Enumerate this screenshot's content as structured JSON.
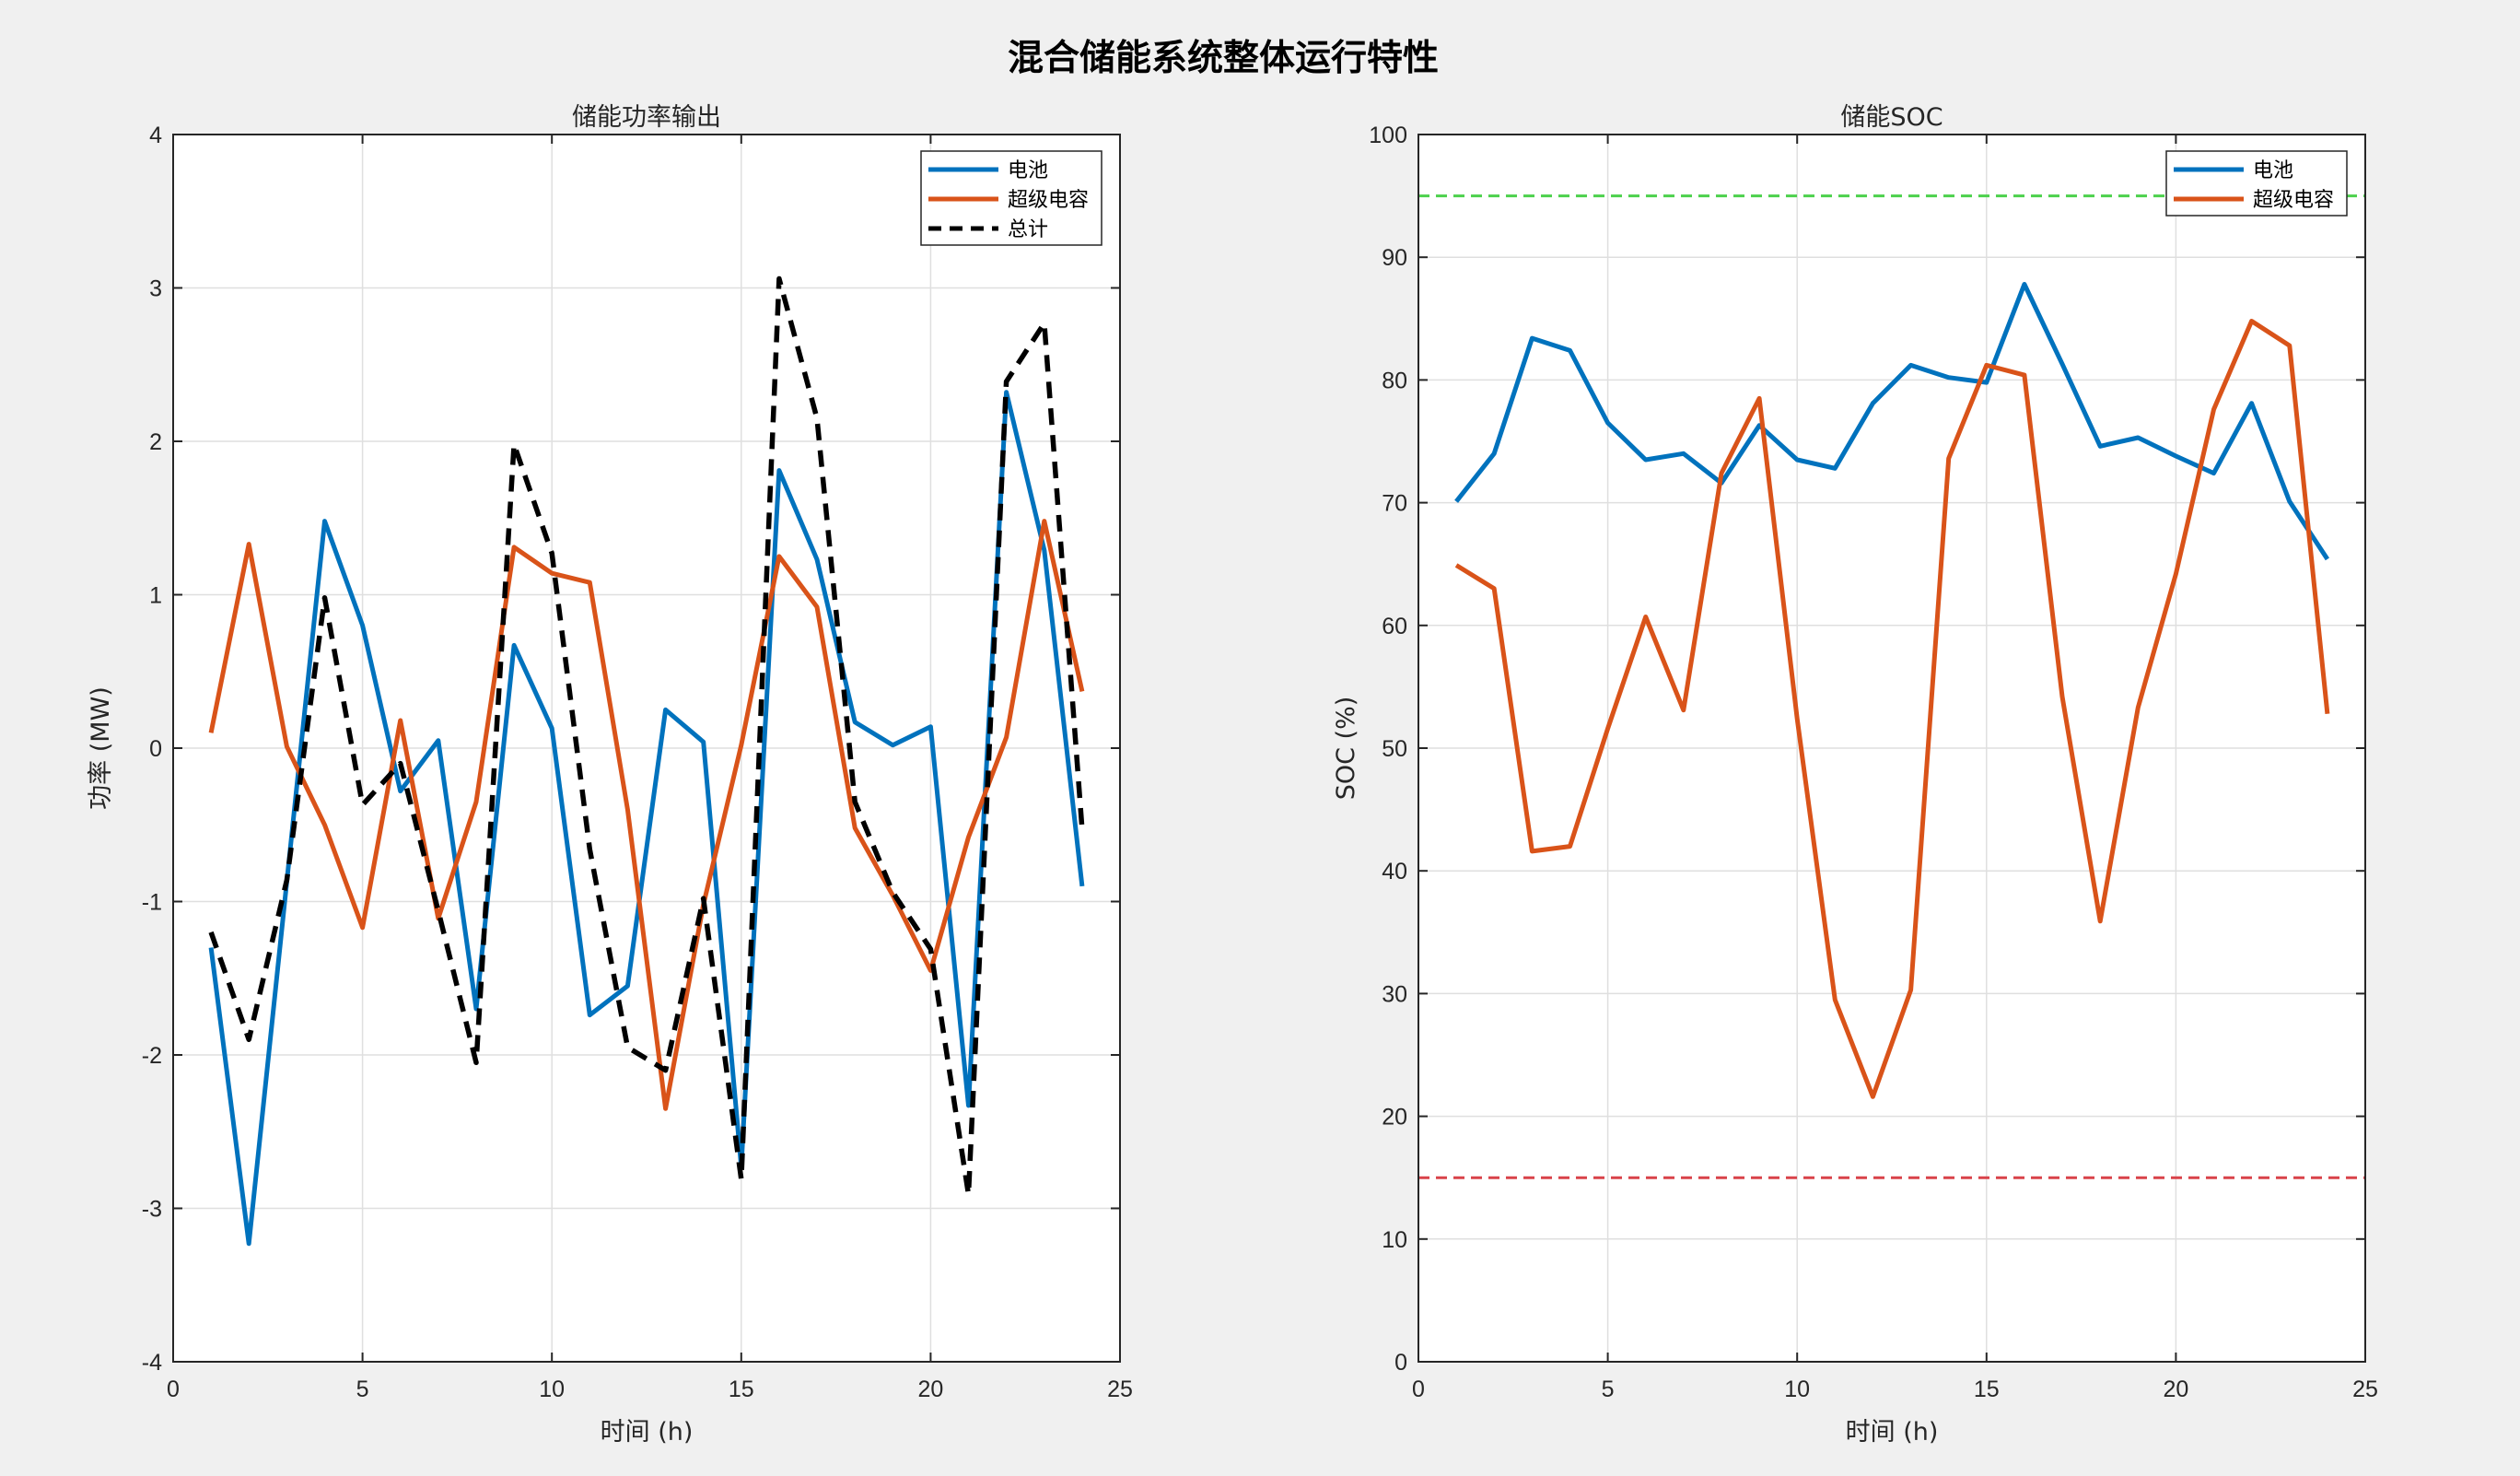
{
  "figure_title": "混合储能系统整体运行特性",
  "chart_data": [
    {
      "type": "line",
      "title": "储能功率输出",
      "xlabel": "时间 (h)",
      "ylabel": "功率 (MW)",
      "xlim": [
        0,
        25
      ],
      "ylim": [
        -4,
        4
      ],
      "xticks": [
        0,
        5,
        10,
        15,
        20,
        25
      ],
      "yticks": [
        -4,
        -3,
        -2,
        -1,
        0,
        1,
        2,
        3,
        4
      ],
      "grid": true,
      "legend_position": "top-right",
      "x": [
        1,
        2,
        3,
        4,
        5,
        6,
        7,
        8,
        9,
        10,
        11,
        12,
        13,
        14,
        15,
        16,
        17,
        18,
        19,
        20,
        21,
        22,
        23,
        24
      ],
      "series": [
        {
          "name": "电池",
          "color": "#0072bd",
          "style": "solid",
          "values": [
            -1.3,
            -3.23,
            -0.87,
            1.48,
            0.8,
            -0.28,
            0.05,
            -1.7,
            0.67,
            0.13,
            -1.74,
            -1.55,
            0.25,
            0.04,
            -2.73,
            1.81,
            1.23,
            0.17,
            0.02,
            0.14,
            -2.33,
            2.32,
            1.29,
            -0.9
          ]
        },
        {
          "name": "超级电容",
          "color": "#d95319",
          "style": "solid",
          "values": [
            0.1,
            1.33,
            0.01,
            -0.5,
            -1.17,
            0.18,
            -1.11,
            -0.35,
            1.31,
            1.14,
            1.08,
            -0.4,
            -2.35,
            -1.02,
            0.02,
            1.25,
            0.92,
            -0.52,
            -0.96,
            -1.45,
            -0.58,
            0.07,
            1.48,
            0.37
          ]
        },
        {
          "name": "总计",
          "color": "#000000",
          "style": "dashed",
          "values": [
            -1.2,
            -1.9,
            -0.86,
            0.98,
            -0.37,
            -0.1,
            -1.06,
            -2.05,
            1.98,
            1.27,
            -0.66,
            -1.95,
            -2.1,
            -0.98,
            -2.81,
            3.06,
            2.15,
            -0.35,
            -0.94,
            -1.31,
            -2.91,
            2.39,
            2.77,
            -0.53
          ]
        }
      ]
    },
    {
      "type": "line",
      "title": "储能SOC",
      "xlabel": "时间 (h)",
      "ylabel": "SOC (%)",
      "xlim": [
        0,
        25
      ],
      "ylim": [
        0,
        100
      ],
      "xticks": [
        0,
        5,
        10,
        15,
        20,
        25
      ],
      "yticks": [
        0,
        10,
        20,
        30,
        40,
        50,
        60,
        70,
        80,
        90,
        100
      ],
      "grid": true,
      "legend_position": "top-right",
      "x": [
        1,
        2,
        3,
        4,
        5,
        6,
        7,
        8,
        9,
        10,
        11,
        12,
        13,
        14,
        15,
        16,
        17,
        18,
        19,
        20,
        21,
        22,
        23,
        24
      ],
      "series": [
        {
          "name": "电池",
          "color": "#0072bd",
          "style": "solid",
          "values": [
            70.1,
            74.0,
            83.4,
            82.4,
            76.5,
            73.5,
            74.0,
            71.6,
            76.3,
            73.5,
            72.8,
            78.1,
            81.2,
            80.2,
            79.8,
            87.8,
            81.3,
            74.6,
            75.3,
            73.8,
            72.4,
            78.1,
            70.1,
            65.4
          ]
        },
        {
          "name": "超级电容",
          "color": "#d95319",
          "style": "solid",
          "values": [
            64.9,
            63.0,
            41.6,
            42.0,
            51.6,
            60.7,
            53.1,
            72.4,
            78.5,
            52.4,
            29.5,
            21.6,
            30.3,
            73.6,
            81.2,
            80.4,
            54.2,
            35.9,
            53.3,
            64.2,
            77.6,
            84.8,
            82.8,
            52.8
          ]
        }
      ],
      "reference_lines": [
        {
          "y": 95,
          "color": "#4cd14c",
          "style": "dashed"
        },
        {
          "y": 15,
          "color": "#d9434a",
          "style": "dashed"
        }
      ]
    }
  ]
}
